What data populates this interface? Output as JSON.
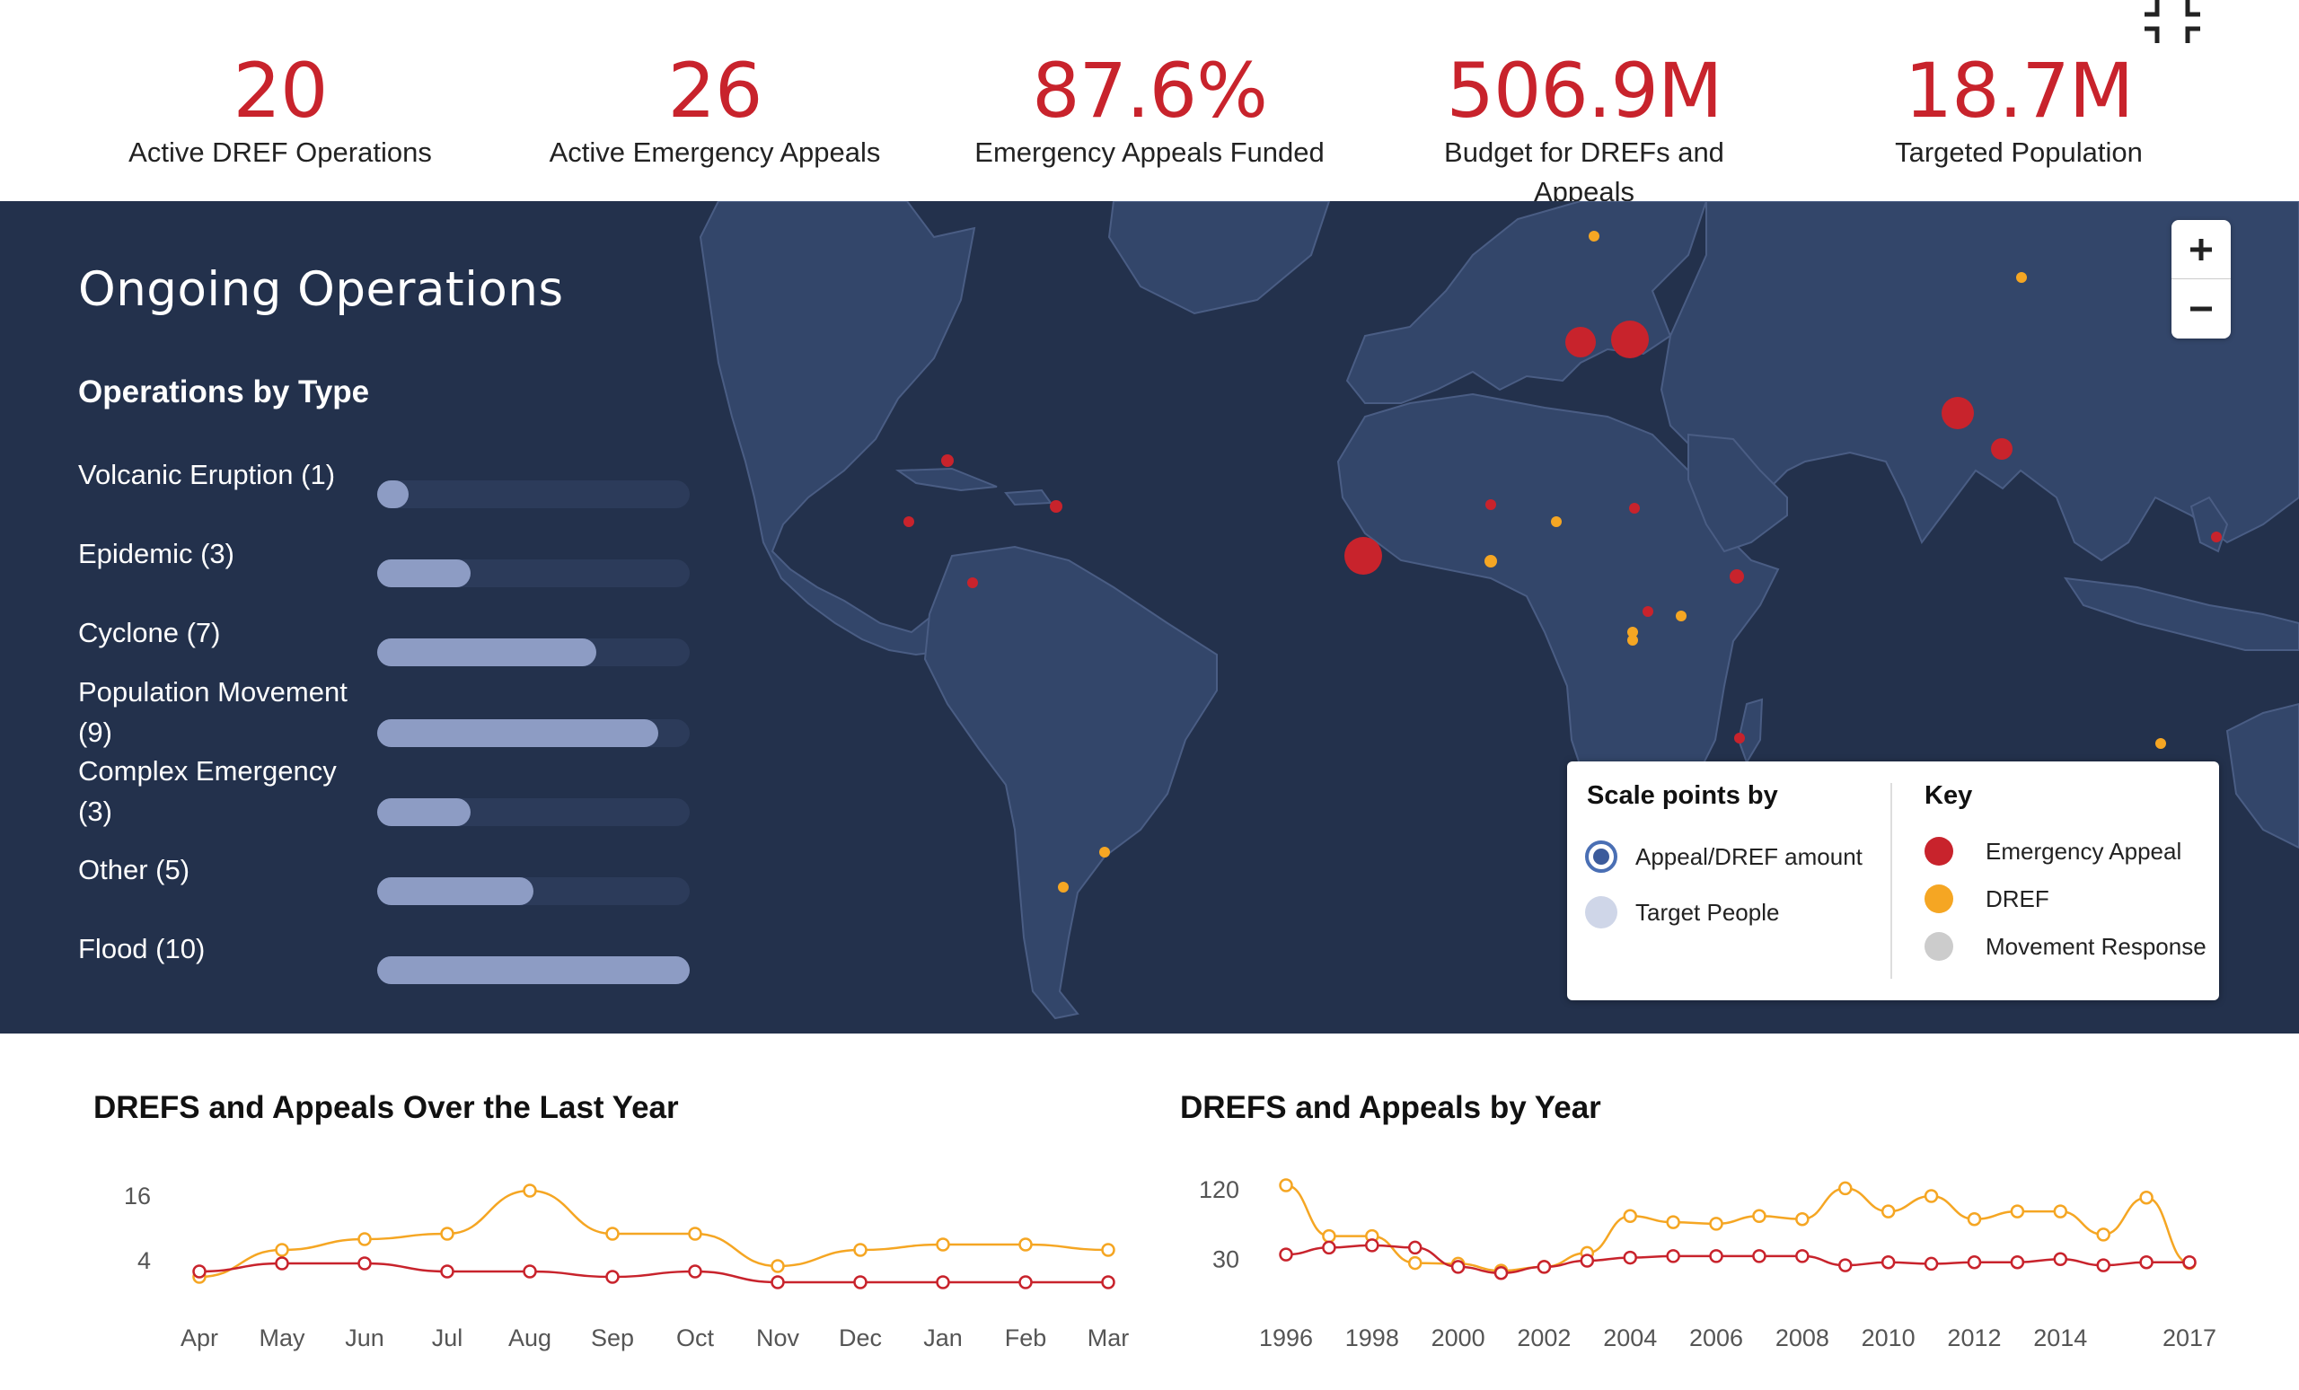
{
  "stats": [
    {
      "value": "20",
      "label": "Active DREF Operations"
    },
    {
      "value": "26",
      "label": "Active Emergency Appeals"
    },
    {
      "value": "87.6%",
      "label": "Emergency Appeals Funded"
    },
    {
      "value": "506.9M",
      "label": "Budget for DREFs and Appeals"
    },
    {
      "value": "18.7M",
      "label": "Targeted Population"
    }
  ],
  "fullscreen_icon": "collapse-fullscreen-icon",
  "map": {
    "title": "Ongoing Operations",
    "operations_by_type": {
      "title": "Operations by Type",
      "max": 10,
      "items": [
        {
          "label": "Volcanic Eruption (1)",
          "count": 1
        },
        {
          "label": "Epidemic (3)",
          "count": 3
        },
        {
          "label": "Cyclone (7)",
          "count": 7
        },
        {
          "label": "Population Movement (9)",
          "count": 9
        },
        {
          "label": "Complex Emergency (3)",
          "count": 3
        },
        {
          "label": "Other (5)",
          "count": 5
        },
        {
          "label": "Flood (10)",
          "count": 10
        }
      ]
    },
    "zoom": {
      "in_label": "+",
      "out_label": "−"
    },
    "legend": {
      "scale_title": "Scale points by",
      "scale_options": [
        {
          "label": "Appeal/DREF amount",
          "selected": true
        },
        {
          "label": "Target People",
          "selected": false
        }
      ],
      "key_title": "Key",
      "key_items": [
        {
          "label": "Emergency Appeal",
          "color": "#c8232c"
        },
        {
          "label": "DREF",
          "color": "#f5a623"
        },
        {
          "label": "Movement Response",
          "color": "#cccccc"
        }
      ]
    },
    "colors": {
      "background": "#23314c",
      "land": "#33466a",
      "appeal": "#c8232c",
      "dref": "#f5a623"
    }
  },
  "chart_data": [
    {
      "type": "line",
      "title": "DREFS and Appeals Over the Last Year",
      "x": [
        "Apr",
        "May",
        "Jun",
        "Jul",
        "Aug",
        "Sep",
        "Oct",
        "Nov",
        "Dec",
        "Jan",
        "Feb",
        "Mar"
      ],
      "yticks": [
        4,
        16
      ],
      "ylim": [
        0,
        20
      ],
      "grid": false,
      "series": [
        {
          "color": "#f5a623",
          "values": [
            1,
            6,
            8,
            9,
            17,
            9,
            9,
            3,
            6,
            7,
            7,
            6
          ]
        },
        {
          "color": "#c8232c",
          "values": [
            2,
            3.5,
            3.5,
            2,
            2,
            1,
            2,
            0,
            0,
            0,
            0,
            0
          ]
        }
      ]
    },
    {
      "type": "line",
      "title": "DREFS and Appeals by Year",
      "x": [
        1996,
        1997,
        1998,
        1999,
        2000,
        2001,
        2002,
        2003,
        2004,
        2005,
        2006,
        2007,
        2008,
        2009,
        2010,
        2011,
        2012,
        2013,
        2014,
        2015,
        2016,
        2017
      ],
      "xticks": [
        "1996",
        "1998",
        "2000",
        "2002",
        "2004",
        "2006",
        "2008",
        "2010",
        "2012",
        "2014",
        "2017"
      ],
      "yticks": [
        30,
        120
      ],
      "ylim": [
        0,
        140
      ],
      "grid": false,
      "series": [
        {
          "color": "#f5a623",
          "values": [
            126,
            60,
            60,
            25,
            24,
            15,
            20,
            38,
            86,
            78,
            76,
            86,
            82,
            122,
            92,
            112,
            82,
            92,
            92,
            62,
            110,
            25
          ]
        },
        {
          "color": "#c8232c",
          "values": [
            36,
            45,
            48,
            45,
            20,
            12,
            20,
            28,
            32,
            34,
            34,
            34,
            34,
            22,
            26,
            24,
            26,
            26,
            30,
            22,
            26,
            26
          ]
        }
      ]
    }
  ]
}
